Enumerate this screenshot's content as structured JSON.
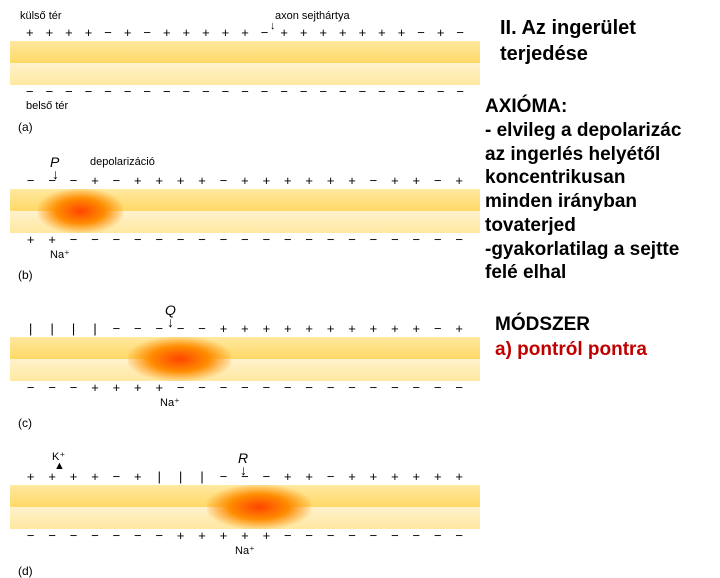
{
  "right": {
    "heading": "II. Az ingerület terjedése",
    "axioma_label": "AXIÓMA:",
    "axioma_line1": "- elvileg a depolarizác",
    "axioma_line2": "az ingerlés helyétől",
    "axioma_line3": "koncentrikusan",
    "axioma_line4": "minden irányban",
    "axioma_line5": "tovaterjed",
    "axioma_line6": "-gyakorlatilag a sejtte",
    "axioma_line7": "felé elhal",
    "method_label": "MÓDSZER",
    "method_a": "a) pontról pontra"
  },
  "panels": {
    "a": {
      "top_label_left": "külső tér",
      "top_label_right": "axon sejthártya",
      "bottom_label": "belső tér",
      "tag": "(a)",
      "charges_out_top": [
        "+",
        "+",
        "+",
        "+",
        "−",
        "+",
        "−",
        "+",
        "+",
        "+",
        "+",
        "+",
        "−",
        "+",
        "+",
        "+",
        "+",
        "+",
        "+",
        "+",
        "−",
        "+",
        "−"
      ],
      "charges_in_top": [
        "−",
        "−",
        "−",
        "−",
        "−",
        "−",
        "−",
        "−",
        "−",
        "−",
        "−",
        "−",
        "−",
        "−",
        "−",
        "−",
        "−",
        "−",
        "−",
        "−",
        "−",
        "−",
        "−"
      ],
      "colors": {
        "bar_top": "#ffd966",
        "bar_bottom": "#ffe8a0"
      }
    },
    "b": {
      "P": "P",
      "depol_label": "depolarizáció",
      "na": "Na⁺",
      "tag": "(b)",
      "charges_out_top": [
        "−",
        "−",
        "−",
        "+",
        "−",
        "+",
        "+",
        "+",
        "+",
        "−",
        "+",
        "+",
        "+",
        "+",
        "+",
        "+",
        "−",
        "+",
        "+",
        "−",
        "+"
      ],
      "charges_in_bot": [
        "+",
        "+",
        "−",
        "−",
        "−",
        "−",
        "−",
        "−",
        "−",
        "−",
        "−",
        "−",
        "−",
        "−",
        "−",
        "−",
        "−",
        "−",
        "−",
        "−",
        "−"
      ],
      "depol_pos_pct": 6,
      "depol_width_pct": 18
    },
    "c": {
      "Q": "Q",
      "na": "Na⁺",
      "tag": "(c)",
      "charges_out_top": [
        "|",
        "|",
        "|",
        "|",
        "−",
        "−",
        "−",
        "−",
        "−",
        "+",
        "+",
        "+",
        "+",
        "+",
        "+",
        "+",
        "+",
        "+",
        "+",
        "−",
        "+"
      ],
      "charges_in_bot": [
        "−",
        "−",
        "−",
        "+",
        "+",
        "+",
        "+",
        "−",
        "−",
        "−",
        "−",
        "−",
        "−",
        "−",
        "−",
        "−",
        "−",
        "−",
        "−",
        "−",
        "−"
      ],
      "depol_pos_pct": 25,
      "depol_width_pct": 22
    },
    "d": {
      "K": "K⁺",
      "R": "R",
      "na": "Na⁺",
      "tag": "(d)",
      "charges_out_top": [
        "+",
        "+",
        "+",
        "+",
        "−",
        "+",
        "|",
        "|",
        "|",
        "−",
        "−",
        "−",
        "+",
        "+",
        "−",
        "+",
        "+",
        "+",
        "+",
        "+",
        "+"
      ],
      "charges_in_bot": [
        "−",
        "−",
        "−",
        "−",
        "−",
        "−",
        "−",
        "+",
        "+",
        "+",
        "+",
        "+",
        "−",
        "−",
        "−",
        "−",
        "−",
        "−",
        "−",
        "−",
        "−"
      ],
      "depol_pos_pct": 42,
      "depol_width_pct": 22
    }
  },
  "styling": {
    "heading_font_size": 20,
    "body_font_size": 19,
    "method_color": "#c00000",
    "background": "#ffffff"
  }
}
